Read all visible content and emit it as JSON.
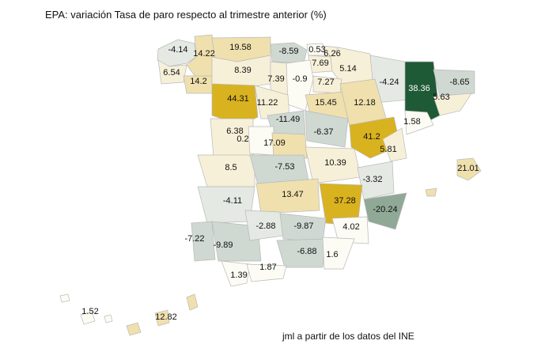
{
  "title": "EPA: variación Tasa de paro respecto al trimestre anterior (%)",
  "credit": "jml a partir de los datos del INE",
  "colors": {
    "strong_positive": "#d9b21f",
    "mid_positive": "#efe0ad",
    "light_positive": "#f7f0d8",
    "neutral": "#fcfbf4",
    "light_negative": "#e4e9e4",
    "mid_negative": "#cfd8d1",
    "strong_negative": "#8fa996",
    "extreme_negative": "#1e5a35",
    "border": "#b9b9b9"
  },
  "values": [
    {
      "id": "a-coruna",
      "value": "-4.14"
    },
    {
      "id": "lugo",
      "value": "14.22"
    },
    {
      "id": "asturias",
      "value": "19.58"
    },
    {
      "id": "cantabria",
      "value": "-8.59"
    },
    {
      "id": "bizkaia",
      "value": "0.53"
    },
    {
      "id": "gipuzkoa",
      "value": "6.26"
    },
    {
      "id": "alava",
      "value": "7.69"
    },
    {
      "id": "navarra",
      "value": "5.14"
    },
    {
      "id": "pontevedra",
      "value": "6.54"
    },
    {
      "id": "ourense",
      "value": "14.2"
    },
    {
      "id": "leon",
      "value": "8.39"
    },
    {
      "id": "palencia",
      "value": "7.39"
    },
    {
      "id": "burgos",
      "value": "-0.9"
    },
    {
      "id": "la-rioja",
      "value": "7.27"
    },
    {
      "id": "huesca",
      "value": "-4.24"
    },
    {
      "id": "lleida",
      "value": "38.36"
    },
    {
      "id": "girona",
      "value": "-8.65"
    },
    {
      "id": "zamora",
      "value": "44.31"
    },
    {
      "id": "valladolid",
      "value": "11.22"
    },
    {
      "id": "soria",
      "value": "15.45"
    },
    {
      "id": "zaragoza",
      "value": "12.18"
    },
    {
      "id": "barcelona",
      "value": "5.63"
    },
    {
      "id": "tarragona",
      "value": "1.58"
    },
    {
      "id": "segovia",
      "value": "-11.49"
    },
    {
      "id": "guadalajara",
      "value": "-6.37"
    },
    {
      "id": "teruel",
      "value": "41.2"
    },
    {
      "id": "salamanca",
      "value": "6.38"
    },
    {
      "id": "avila",
      "value": "0.2"
    },
    {
      "id": "madrid",
      "value": "17.09"
    },
    {
      "id": "castellon",
      "value": "5.81"
    },
    {
      "id": "caceres",
      "value": "8.5"
    },
    {
      "id": "toledo",
      "value": "-7.53"
    },
    {
      "id": "cuenca",
      "value": "10.39"
    },
    {
      "id": "baleares",
      "value": "21.01"
    },
    {
      "id": "valencia",
      "value": "-3.32"
    },
    {
      "id": "badajoz",
      "value": "-4.11"
    },
    {
      "id": "ciudad-real",
      "value": "13.47"
    },
    {
      "id": "albacete",
      "value": "37.28"
    },
    {
      "id": "alicante",
      "value": "-20.24"
    },
    {
      "id": "huelva",
      "value": "-7.22"
    },
    {
      "id": "sevilla",
      "value": "-9.89"
    },
    {
      "id": "cordoba",
      "value": "-2.88"
    },
    {
      "id": "jaen",
      "value": "-9.87"
    },
    {
      "id": "murcia",
      "value": "4.02"
    },
    {
      "id": "granada",
      "value": "-6.88"
    },
    {
      "id": "almeria",
      "value": "1.6"
    },
    {
      "id": "cadiz",
      "value": "1.39"
    },
    {
      "id": "malaga",
      "value": "1.87"
    },
    {
      "id": "santa-cruz-de-tenerife",
      "value": "1.52"
    },
    {
      "id": "las-palmas",
      "value": "12.82"
    }
  ]
}
